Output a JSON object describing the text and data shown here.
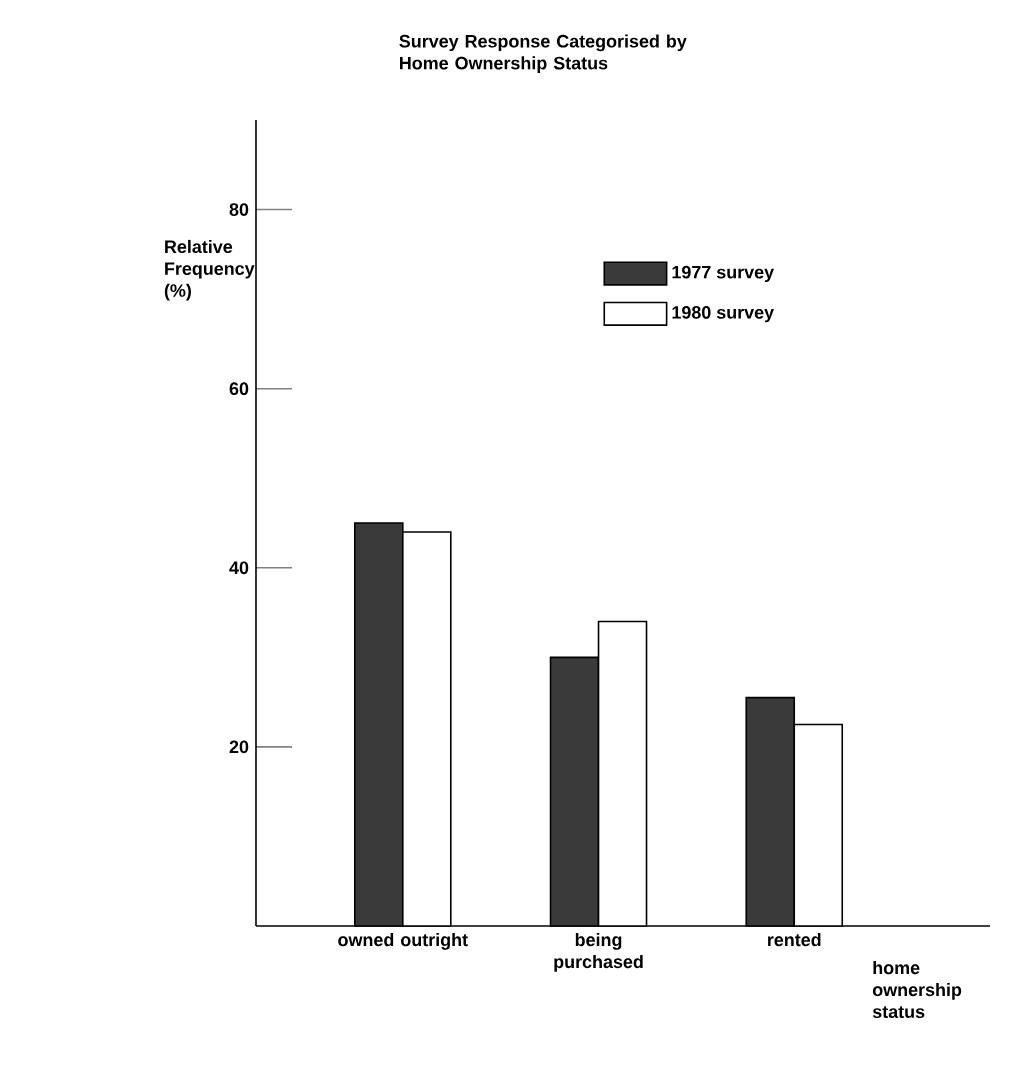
{
  "chart_data": {
    "type": "bar",
    "title": "Survey Response Categorised by Home Ownership Status",
    "ylabel": "Relative Frequency (%)",
    "xlabel": "home ownership status",
    "categories": [
      "owned outright",
      "being purchased",
      "rented"
    ],
    "series": [
      {
        "name": "1977 survey",
        "color": "#3a3a3a",
        "values": [
          45,
          30,
          25.5
        ]
      },
      {
        "name": "1980 survey",
        "color": "#ffffff",
        "values": [
          44,
          34,
          22.5
        ]
      }
    ],
    "ylim": [
      0,
      90
    ],
    "yticks": [
      20,
      40,
      60,
      80
    ],
    "legend": "top right"
  }
}
